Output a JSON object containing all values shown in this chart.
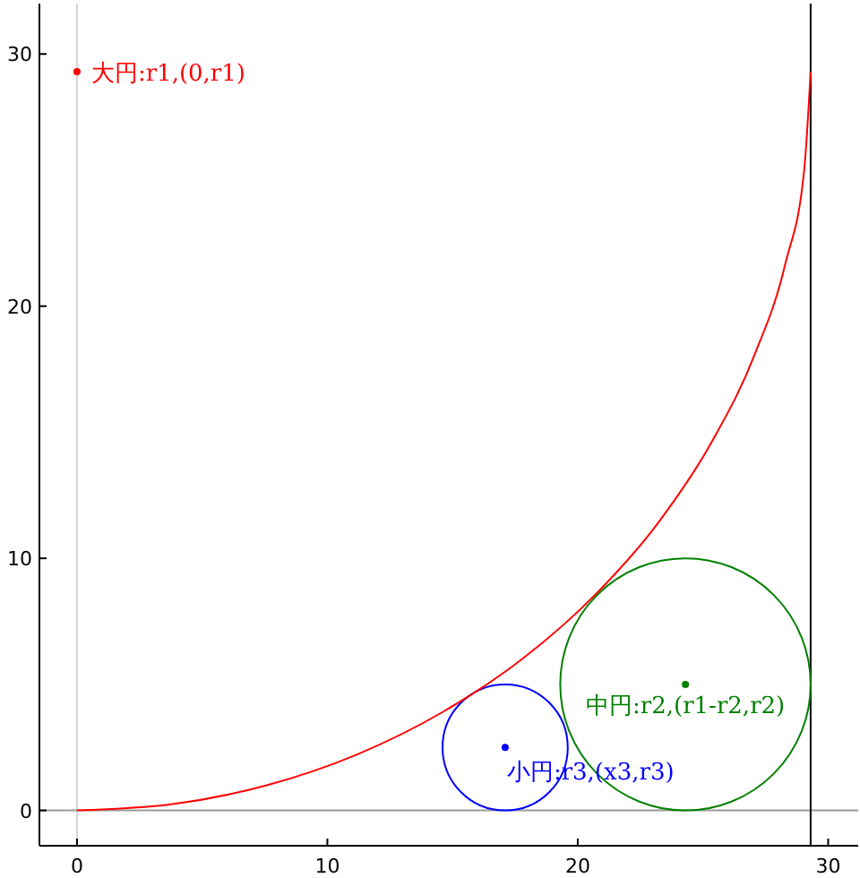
{
  "chart_data": {
    "type": "scatter",
    "xlim": [
      -1.5,
      31.2
    ],
    "ylim": [
      -1.4,
      32
    ],
    "xticks": [
      0,
      10,
      20,
      30
    ],
    "yticks": [
      0,
      10,
      20,
      30
    ],
    "grid": false,
    "marker": "circle",
    "series": [
      {
        "type": "line",
        "marker": "none",
        "line_style": "solid",
        "color": "#ff0000",
        "x": [
          0,
          3.82,
          7.58,
          11.21,
          14.65,
          17.84,
          20.72,
          23.25,
          25.37,
          27.07,
          28.3,
          29.05,
          29.3
        ],
        "values": [
          0,
          0.25,
          1.0,
          2.23,
          3.93,
          6.05,
          8.58,
          11.46,
          14.65,
          18.09,
          21.72,
          25.48,
          29.3
        ]
      },
      {
        "color": "#ff0000",
        "x": [
          0
        ],
        "values": [
          29.3
        ]
      },
      {
        "color": "#008000",
        "x": [
          24.3
        ],
        "values": [
          5
        ]
      },
      {
        "color": "#0000ff",
        "x": [
          17.1
        ],
        "values": [
          2.5
        ]
      }
    ],
    "ref_lines": [
      {
        "axis": "x",
        "value": 0,
        "color": "#d3d3d3"
      },
      {
        "axis": "y",
        "value": 0,
        "color": "#999999"
      },
      {
        "axis": "x",
        "value": 29.3,
        "color": "#000000"
      }
    ],
    "annotations": [
      {
        "text": "大円:r1,(0,r1)",
        "x": 0,
        "y": 29.3
      },
      {
        "text": "中円:r2,(r1-r2,r2)",
        "x": 24.3,
        "y": 5
      },
      {
        "text": "小円:r3,(x3,r3)",
        "x": 17.1,
        "y": 2.5
      }
    ]
  }
}
